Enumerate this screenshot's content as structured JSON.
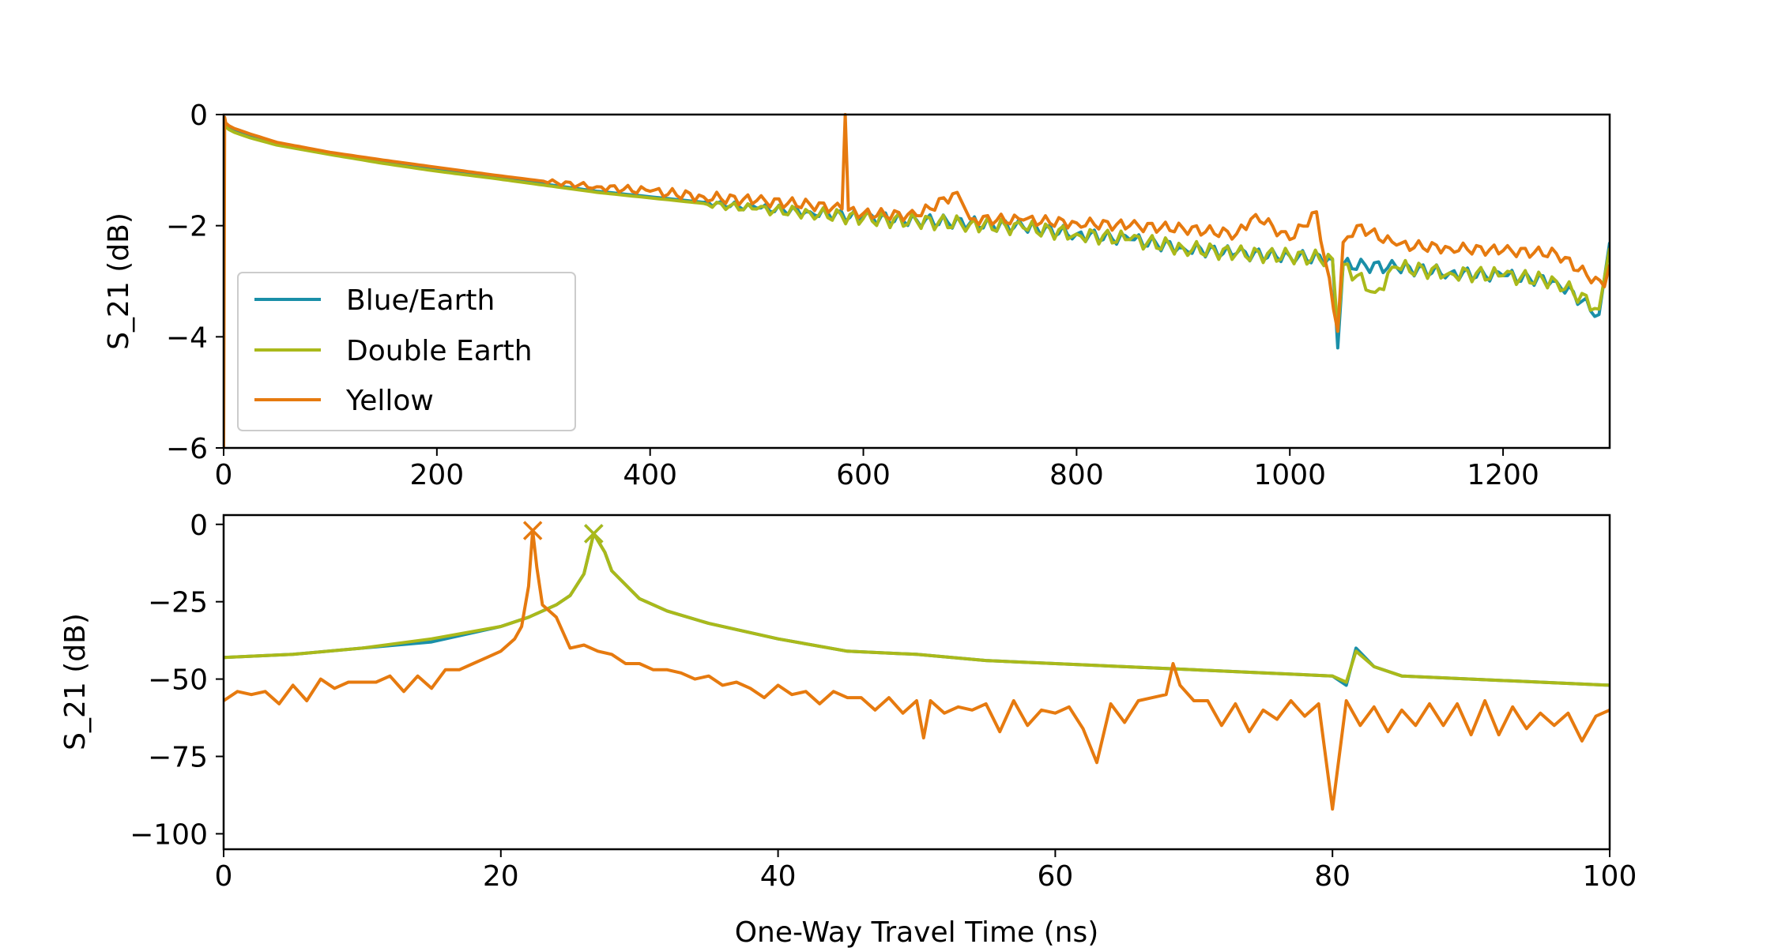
{
  "chart_data": [
    {
      "type": "line",
      "panel": "top",
      "xlabel": "",
      "ylabel": "S_21 (dB)",
      "xlim": [
        0,
        1300
      ],
      "ylim": [
        -6,
        0
      ],
      "xticks": [
        0,
        200,
        400,
        600,
        800,
        1000,
        1200
      ],
      "yticks": [
        0,
        -2,
        -4,
        -6
      ],
      "xtick_labels": [
        "0",
        "200",
        "400",
        "600",
        "800",
        "1000",
        "1200"
      ],
      "ytick_labels": [
        "0",
        "−2",
        "−4",
        "−6"
      ],
      "grid": false,
      "legend": {
        "placement": "lower-left",
        "entries": [
          "Blue/Earth",
          "Double Earth",
          "Yellow"
        ]
      },
      "series": [
        {
          "name": "Blue/Earth",
          "color": "#1a8fa8",
          "x": [
            0,
            2,
            5,
            10,
            25,
            50,
            100,
            150,
            200,
            250,
            300,
            350,
            400,
            450,
            500,
            550,
            600,
            650,
            700,
            750,
            800,
            850,
            900,
            950,
            1000,
            1040,
            1045,
            1050,
            1100,
            1150,
            1200,
            1250,
            1290,
            1300
          ],
          "y": [
            -0.05,
            -0.2,
            -0.25,
            -0.3,
            -0.4,
            -0.52,
            -0.7,
            -0.85,
            -1.0,
            -1.12,
            -1.25,
            -1.38,
            -1.48,
            -1.58,
            -1.68,
            -1.75,
            -1.85,
            -1.9,
            -1.95,
            -2.02,
            -2.15,
            -2.25,
            -2.4,
            -2.5,
            -2.55,
            -2.6,
            -4.2,
            -2.7,
            -2.75,
            -2.85,
            -2.9,
            -3.0,
            -3.6,
            -2.3
          ],
          "ripple_start": 450,
          "ripple_amplitude": 0.12
        },
        {
          "name": "Double Earth",
          "color": "#aab91a",
          "x": [
            0,
            2,
            5,
            10,
            25,
            50,
            100,
            150,
            200,
            250,
            300,
            350,
            400,
            450,
            500,
            550,
            600,
            650,
            700,
            750,
            800,
            850,
            900,
            950,
            1000,
            1040,
            1045,
            1050,
            1080,
            1100,
            1150,
            1200,
            1250,
            1290,
            1300
          ],
          "y": [
            -0.05,
            -0.22,
            -0.27,
            -0.32,
            -0.42,
            -0.55,
            -0.72,
            -0.88,
            -1.02,
            -1.14,
            -1.27,
            -1.4,
            -1.5,
            -1.6,
            -1.7,
            -1.77,
            -1.87,
            -1.92,
            -1.97,
            -2.04,
            -2.15,
            -2.25,
            -2.4,
            -2.5,
            -2.55,
            -2.6,
            -3.9,
            -2.7,
            -3.2,
            -2.75,
            -2.85,
            -2.9,
            -3.0,
            -3.5,
            -2.4
          ],
          "ripple_start": 450,
          "ripple_amplitude": 0.14
        },
        {
          "name": "Yellow",
          "color": "#e67a0f",
          "x": [
            0,
            1,
            2,
            5,
            10,
            25,
            50,
            100,
            150,
            200,
            250,
            300,
            350,
            400,
            450,
            500,
            550,
            580,
            583,
            586,
            600,
            650,
            688,
            700,
            750,
            800,
            850,
            900,
            950,
            968,
            1000,
            1025,
            1045,
            1050,
            1063,
            1100,
            1150,
            1200,
            1250,
            1295,
            1300
          ],
          "y": [
            -6.0,
            -0.05,
            -0.15,
            -0.2,
            -0.25,
            -0.35,
            -0.5,
            -0.68,
            -0.82,
            -0.95,
            -1.08,
            -1.2,
            -1.3,
            -1.38,
            -1.48,
            -1.55,
            -1.62,
            -1.7,
            0.0,
            -1.72,
            -1.78,
            -1.82,
            -1.4,
            -1.88,
            -1.9,
            -1.95,
            -2.0,
            -2.05,
            -2.15,
            -1.8,
            -2.25,
            -1.75,
            -3.9,
            -2.3,
            -2.0,
            -2.35,
            -2.4,
            -2.45,
            -2.5,
            -3.1,
            -2.7
          ],
          "ripple_start": 300,
          "ripple_amplitude": 0.1
        }
      ]
    },
    {
      "type": "line",
      "panel": "bottom",
      "xlabel": "One-Way Travel Time (ns)",
      "ylabel": "S_21 (dB)",
      "xlim": [
        0,
        100
      ],
      "ylim": [
        -105,
        3
      ],
      "xticks": [
        0,
        20,
        40,
        60,
        80,
        100
      ],
      "yticks": [
        0,
        -25,
        -50,
        -75,
        -100
      ],
      "xtick_labels": [
        "0",
        "20",
        "40",
        "60",
        "80",
        "100"
      ],
      "ytick_labels": [
        "0",
        "−25",
        "−50",
        "−75",
        "−100"
      ],
      "grid": false,
      "series": [
        {
          "name": "Blue/Earth",
          "color": "#1a8fa8",
          "x": [
            0,
            5,
            10,
            15,
            20,
            22,
            24,
            25,
            26,
            26.7,
            27.5,
            28,
            30,
            32,
            35,
            40,
            45,
            50,
            55,
            60,
            65,
            70,
            75,
            80,
            81,
            81.7,
            83,
            85,
            90,
            95,
            100
          ],
          "y": [
            -43,
            -42,
            -40,
            -38,
            -33,
            -30,
            -26,
            -23,
            -16,
            -3,
            -9,
            -15,
            -24,
            -28,
            -32,
            -37,
            -41,
            -42,
            -44,
            -45,
            -46,
            -47,
            -48,
            -49,
            -52,
            -40,
            -46,
            -49,
            -50,
            -51,
            -52
          ],
          "peak": [
            26.7,
            -3
          ]
        },
        {
          "name": "Double Earth",
          "color": "#aab91a",
          "x": [
            0,
            5,
            10,
            15,
            20,
            22,
            24,
            25,
            26,
            26.7,
            27.5,
            28,
            30,
            32,
            35,
            40,
            45,
            50,
            55,
            60,
            65,
            70,
            75,
            80,
            81,
            81.7,
            83,
            85,
            90,
            95,
            100
          ],
          "y": [
            -43,
            -42,
            -40,
            -37,
            -33,
            -30,
            -26,
            -23,
            -16,
            -3,
            -9,
            -15,
            -24,
            -28,
            -32,
            -37,
            -41,
            -42,
            -44,
            -45,
            -46,
            -47,
            -48,
            -49,
            -51,
            -41,
            -46,
            -49,
            -50,
            -51,
            -52
          ],
          "peak": [
            26.7,
            -3
          ]
        },
        {
          "name": "Yellow",
          "color": "#e67a0f",
          "x": [
            0,
            1,
            2,
            3,
            4,
            5,
            6,
            7,
            8,
            9,
            10,
            11,
            12,
            13,
            14,
            15,
            16,
            17,
            18,
            19,
            20,
            21,
            21.5,
            22,
            22.3,
            22.6,
            23,
            24,
            25,
            26,
            27,
            28,
            29,
            30,
            31,
            32,
            33,
            34,
            35,
            36,
            37,
            38,
            39,
            40,
            41,
            42,
            43,
            44,
            45,
            46,
            47,
            48,
            49,
            50,
            50.5,
            51,
            52,
            53,
            54,
            55,
            56,
            57,
            58,
            59,
            60,
            61,
            62,
            63,
            64,
            65,
            66,
            67,
            68,
            68.5,
            69,
            70,
            71,
            72,
            73,
            74,
            75,
            76,
            77,
            78,
            79,
            80,
            81,
            82,
            83,
            84,
            85,
            86,
            87,
            88,
            89,
            90,
            91,
            92,
            93,
            94,
            95,
            96,
            97,
            98,
            99,
            100
          ],
          "y": [
            -57,
            -54,
            -55,
            -54,
            -58,
            -52,
            -57,
            -50,
            -53,
            -51,
            -51,
            -51,
            -49,
            -54,
            -49,
            -53,
            -47,
            -47,
            -45,
            -43,
            -41,
            -37,
            -33,
            -20,
            -2,
            -14,
            -26,
            -30,
            -40,
            -39,
            -41,
            -42,
            -45,
            -45,
            -47,
            -47,
            -48,
            -50,
            -49,
            -52,
            -51,
            -53,
            -56,
            -52,
            -55,
            -54,
            -58,
            -54,
            -56,
            -56,
            -60,
            -56,
            -61,
            -57,
            -69,
            -57,
            -61,
            -59,
            -60,
            -58,
            -67,
            -57,
            -65,
            -60,
            -61,
            -59,
            -66,
            -77,
            -58,
            -64,
            -57,
            -56,
            -55,
            -45,
            -52,
            -57,
            -57,
            -65,
            -58,
            -67,
            -60,
            -63,
            -57,
            -62,
            -58,
            -92,
            -57,
            -65,
            -59,
            -67,
            -60,
            -65,
            -58,
            -65,
            -58,
            -68,
            -57,
            -68,
            -59,
            -66,
            -61,
            -65,
            -61,
            -70,
            -62,
            -60
          ],
          "peak": [
            22.3,
            -2
          ]
        }
      ]
    }
  ]
}
